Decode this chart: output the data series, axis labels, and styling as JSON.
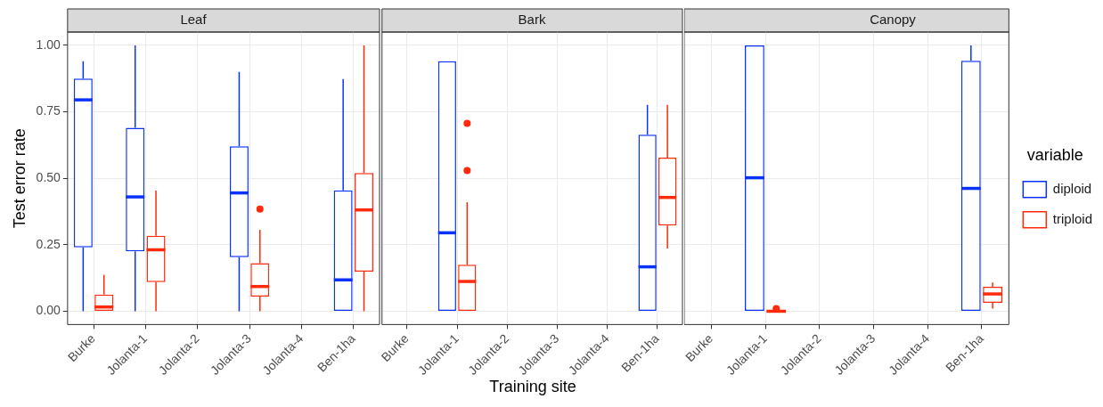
{
  "chart_data": [
    {
      "type": "box",
      "title": "Leaf",
      "ylabel": "Test error rate",
      "categories": [
        "Burke",
        "Jolanta-1",
        "Jolanta-2",
        "Jolanta-3",
        "Jolanta-4",
        "Ben-1ha"
      ],
      "ylim": [
        -0.05,
        1.05
      ],
      "yticks": [
        {
          "value": 0,
          "label": "0.00"
        },
        {
          "value": 0.25,
          "label": "0.25"
        },
        {
          "value": 0.5,
          "label": "0.50"
        },
        {
          "value": 0.75,
          "label": "0.75"
        },
        {
          "value": 1,
          "label": "1.00"
        }
      ],
      "grid": true,
      "series": [
        {
          "color": "#0a32ff",
          "boxes": [
            {
              "low": 0,
              "q1": 0.24,
              "median": 0.795,
              "q3": 0.875,
              "high": 0.94
            },
            {
              "low": 0,
              "q1": 0.225,
              "median": 0.43,
              "q3": 0.69,
              "high": 1.0
            },
            null,
            {
              "low": 0,
              "q1": 0.203,
              "median": 0.445,
              "q3": 0.62,
              "high": 0.9
            },
            null,
            {
              "low": 0,
              "q1": 0,
              "median": 0.118,
              "q3": 0.455,
              "high": 0.873
            }
          ]
        },
        {
          "color": "#ff2a0c",
          "boxes": [
            {
              "low": 0,
              "q1": 0,
              "median": 0.016,
              "q3": 0.063,
              "high": 0.137
            },
            {
              "low": 0,
              "q1": 0.11,
              "median": 0.231,
              "q3": 0.284,
              "high": 0.454
            },
            null,
            {
              "low": 0,
              "q1": 0.055,
              "median": 0.093,
              "q3": 0.181,
              "high": 0.306,
              "outliers": [
                0.384
              ]
            },
            null,
            {
              "low": 0,
              "q1": 0.149,
              "median": 0.381,
              "q3": 0.52,
              "high": 1.0
            }
          ]
        }
      ]
    },
    {
      "type": "box",
      "title": "Bark",
      "xlabel": "Training site",
      "categories": [
        "Burke",
        "Jolanta-1",
        "Jolanta-2",
        "Jolanta-3",
        "Jolanta-4",
        "Ben-1ha"
      ],
      "ylim": [
        -0.05,
        1.05
      ],
      "yticks": [
        0,
        0.25,
        0.5,
        0.75,
        1
      ],
      "tick_labels": "x",
      "grid": true,
      "series": [
        {
          "color": "#0a32ff",
          "boxes": [
            null,
            {
              "low": 0,
              "q1": 0,
              "median": 0.295,
              "q3": 0.94,
              "high": 0.94
            },
            null,
            null,
            null,
            {
              "low": 0,
              "q1": 0,
              "median": 0.167,
              "q3": 0.664,
              "high": 0.776
            }
          ]
        },
        {
          "color": "#ff2a0c",
          "boxes": [
            null,
            {
              "low": 0,
              "q1": 0,
              "median": 0.112,
              "q3": 0.175,
              "high": 0.41,
              "outliers": [
                0.707,
                0.529
              ]
            },
            null,
            null,
            null,
            {
              "low": 0.236,
              "q1": 0.322,
              "median": 0.428,
              "q3": 0.578,
              "high": 0.776
            }
          ]
        }
      ]
    },
    {
      "type": "box",
      "title": "Canopy",
      "categories": [
        "Burke",
        "Jolanta-1",
        "Jolanta-2",
        "Jolanta-3",
        "Jolanta-4",
        "Ben-1ha"
      ],
      "ylim": [
        -0.05,
        1.05
      ],
      "yticks": [
        0,
        0.25,
        0.5,
        0.75,
        1
      ],
      "tick_labels": "x",
      "grid": true,
      "legend": "right",
      "legend_title": "variable",
      "series": [
        {
          "name": "diploid",
          "color": "#0a32ff",
          "boxes": [
            null,
            {
              "low": 0,
              "q1": 0,
              "median": 0.502,
              "q3": 1.0,
              "high": 1.0
            },
            null,
            null,
            null,
            {
              "low": 0,
              "q1": 0,
              "median": 0.462,
              "q3": 0.942,
              "high": 1.0
            }
          ]
        },
        {
          "name": "triploid",
          "color": "#ff2a0c",
          "boxes": [
            null,
            {
              "low": 0,
              "q1": 0,
              "median": 0,
              "q3": 0,
              "high": 0,
              "outliers": [
                0.01
              ]
            },
            null,
            null,
            null,
            {
              "low": 0.01,
              "q1": 0.032,
              "median": 0.065,
              "q3": 0.092,
              "high": 0.108
            }
          ]
        }
      ]
    }
  ]
}
